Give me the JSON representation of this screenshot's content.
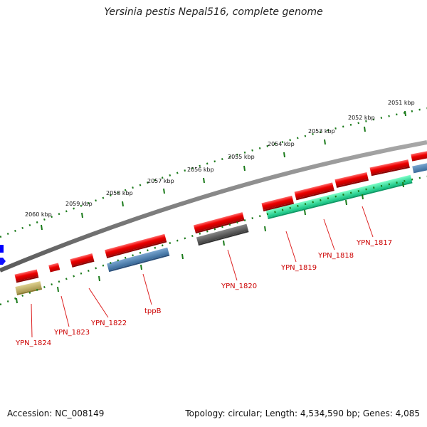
{
  "title": "Yersinia pestis Nepal516, complete genome",
  "footer": {
    "accession": "Accession: NC_008149",
    "topology": "Topology: circular; Length: 4,534,590 bp; Genes: 4,085"
  },
  "ticks": [
    "2051 kbp",
    "2052 kbp",
    "2053 kbp",
    "2054 kbp",
    "2055 kbp",
    "2056 kbp",
    "2057 kbp",
    "2058 kbp",
    "2059 kbp",
    "2060 kbp"
  ],
  "genes": [
    "YPN_1817",
    "YPN_1818",
    "YPN_1819",
    "YPN_1820",
    "tppB",
    "YPN_1822",
    "YPN_1823",
    "YPN_1824"
  ],
  "colors": {
    "backbone": "#7a7a7a",
    "forward_gene": "#ee0000",
    "reverse_blue": "#4a7fb0",
    "reverse_green": "#22e8a0",
    "reverse_gray": "#555555",
    "reverse_olive": "#c8b868",
    "tick": "#1a7a1a",
    "label": "#cc0000",
    "blue_marker": "#0000ff"
  }
}
